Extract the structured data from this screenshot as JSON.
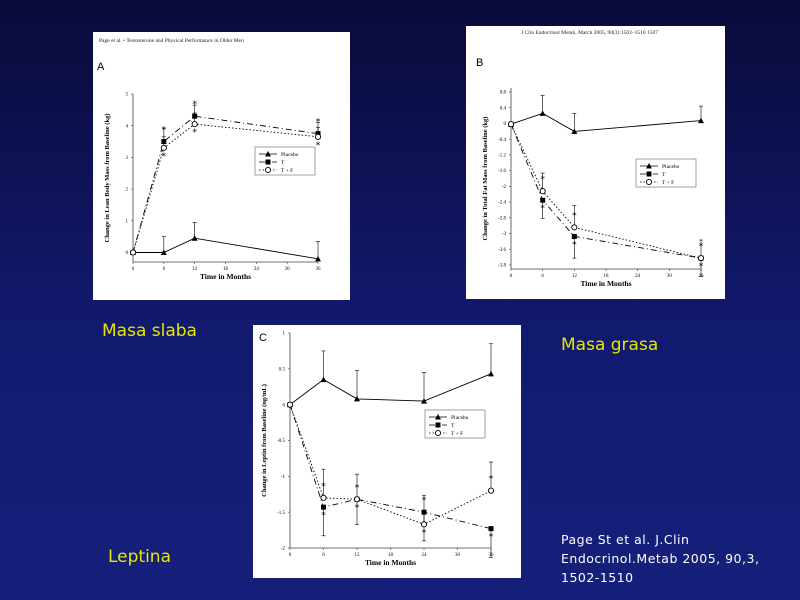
{
  "slide": {
    "caption_a": "Masa slaba",
    "caption_b": "Masa grasa",
    "caption_c": "Leptina",
    "reference_lines": [
      "Page St et al. J.Clin",
      "Endocrinol.Metab 2005, 90,3,",
      "1502-1510"
    ]
  },
  "chart_data": [
    {
      "type": "line",
      "panel_letter": "A",
      "header": "Page et al. • Testosterone and Physical Performance in Older Men",
      "xlabel": "Time in Months",
      "ylabel": "Change in Lean Body Mass from Baseline (kg)",
      "xlim": [
        0,
        36
      ],
      "ylim": [
        -0.3,
        5
      ],
      "x_ticks": [
        "0",
        "6",
        "12",
        "18",
        "24",
        "30",
        "36"
      ],
      "y_ticks": [
        "0",
        "1",
        "2",
        "3",
        "4",
        "5"
      ],
      "legend": "top-right",
      "series": [
        {
          "name": "Placebo",
          "x": [
            0,
            6,
            12,
            36
          ],
          "y": [
            0,
            0,
            0.45,
            -0.2
          ],
          "err": [
            0,
            0.5,
            0.5,
            0.55
          ]
        },
        {
          "name": "T",
          "x": [
            0,
            6,
            12,
            36
          ],
          "y": [
            0,
            3.5,
            4.3,
            3.75
          ],
          "err": [
            0,
            0.4,
            0.35,
            0.35
          ]
        },
        {
          "name": "T + F",
          "x": [
            0,
            6,
            12,
            36
          ],
          "y": [
            0,
            3.3,
            4.05,
            3.65
          ],
          "err": [
            0,
            0.35,
            0.35,
            0.3
          ]
        }
      ],
      "significance_marks": [
        "*",
        "*",
        "*",
        "*",
        "*",
        "*"
      ]
    },
    {
      "type": "line",
      "panel_letter": "B",
      "header": "J Clin Endocrinol Metab, March 2005, 90(3):1502–1510    1507",
      "xlabel": "Time in Months",
      "ylabel": "Change in Total Fat Mass from Baseline (kg)",
      "xlim": [
        0,
        36
      ],
      "ylim": [
        -4,
        1
      ],
      "x_ticks": [
        "0",
        "6",
        "12",
        "18",
        "24",
        "30",
        "36"
      ],
      "y_ticks": [
        "0.8",
        "0.4",
        "0",
        "-0.4",
        "-1.2",
        "-1.6",
        "-2",
        "-2.4",
        "-2.8",
        "-3",
        "-3.6",
        "-3.8"
      ],
      "legend": "right",
      "series": [
        {
          "name": "Placebo",
          "x": [
            0,
            6,
            12,
            36
          ],
          "y": [
            0,
            0.3,
            -0.2,
            0.1
          ],
          "err": [
            0,
            0.5,
            0.5,
            0.4
          ]
        },
        {
          "name": "T",
          "x": [
            0,
            6,
            12,
            36
          ],
          "y": [
            0,
            -2.1,
            -3.1,
            -3.7
          ],
          "err": [
            0,
            0.5,
            0.6,
            0.5
          ]
        },
        {
          "name": "T + F",
          "x": [
            0,
            6,
            12,
            36
          ],
          "y": [
            0,
            -1.85,
            -2.85,
            -3.7
          ],
          "err": [
            0,
            0.5,
            0.6,
            0.5
          ]
        }
      ],
      "significance_marks": [
        "*",
        "*",
        "*",
        "*",
        "*",
        "*"
      ]
    },
    {
      "type": "line",
      "panel_letter": "C",
      "xlabel": "Time in Months",
      "ylabel": "Change in Leptin from Baseline (ng/mL)",
      "xlim": [
        0,
        36
      ],
      "ylim": [
        -2,
        1
      ],
      "x_ticks": [
        "0",
        "6",
        "12",
        "18",
        "24",
        "30",
        "36"
      ],
      "y_ticks": [
        "1",
        "0.5",
        "0",
        "-0.5",
        "-1",
        "-1.5",
        "-2"
      ],
      "legend": "right",
      "series": [
        {
          "name": "Placebo",
          "x": [
            0,
            6,
            12,
            24,
            36
          ],
          "y": [
            0,
            0.35,
            0.08,
            0.05,
            0.43
          ],
          "err": [
            0,
            0.4,
            0.4,
            0.4,
            0.42
          ]
        },
        {
          "name": "T",
          "x": [
            0,
            6,
            12,
            24,
            36
          ],
          "y": [
            0,
            -1.43,
            -1.32,
            -1.5,
            -1.73
          ],
          "err": [
            0,
            0.4,
            0.35,
            0.4,
            0.4
          ]
        },
        {
          "name": "T + F",
          "x": [
            0,
            6,
            12,
            24,
            36
          ],
          "y": [
            0,
            -1.3,
            -1.32,
            -1.67,
            -1.2
          ],
          "err": [
            0,
            0.4,
            0.35,
            0.4,
            0.4
          ]
        }
      ],
      "significance_marks": [
        "*",
        "*",
        "*",
        "*",
        "*",
        "*",
        "*",
        "*"
      ]
    }
  ]
}
